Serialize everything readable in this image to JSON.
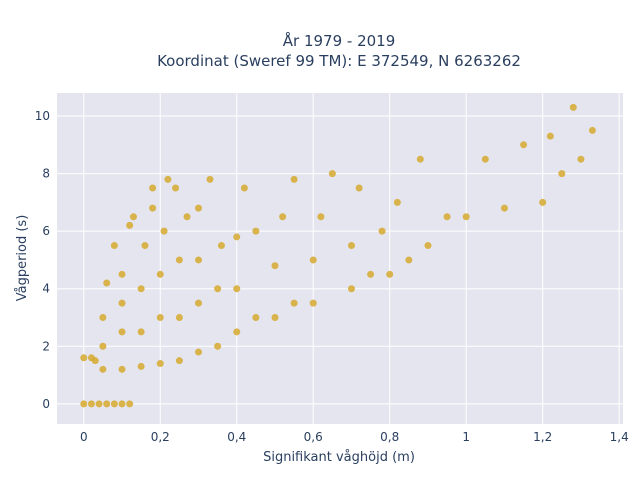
{
  "chart_data": {
    "type": "scatter",
    "title_line1": "År 1979 - 2019",
    "title_line2": "Koordinat (Sweref 99 TM): E 372549, N 6263262",
    "xlabel": "Signifikant våghöjd (m)",
    "ylabel": "Vågperiod (s)",
    "xlim": [
      -0.07,
      1.41
    ],
    "ylim": [
      -0.7,
      10.8
    ],
    "x_ticks": [
      0,
      0.2,
      0.4,
      0.6,
      0.8,
      1,
      1.2,
      1.4
    ],
    "x_tick_labels": [
      "0",
      "0,2",
      "0,4",
      "0,6",
      "0,8",
      "1",
      "1,2",
      "1,4"
    ],
    "y_ticks": [
      0,
      2,
      4,
      6,
      8,
      10
    ],
    "y_tick_labels": [
      "0",
      "2",
      "4",
      "6",
      "8",
      "10"
    ],
    "grid": true,
    "marker_color": "#D4A520",
    "background_color": "#E5E5F0",
    "grid_color": "#FFFFFF",
    "series": [
      {
        "points": [
          [
            0.0,
            0
          ],
          [
            0.02,
            0
          ],
          [
            0.04,
            0
          ],
          [
            0.06,
            0
          ],
          [
            0.08,
            0
          ],
          [
            0.1,
            0
          ],
          [
            0.12,
            0
          ],
          [
            0.0,
            1.6
          ],
          [
            0.02,
            1.6
          ],
          [
            0.03,
            1.5
          ],
          [
            0.05,
            1.2
          ],
          [
            0.05,
            2.0
          ],
          [
            0.05,
            3.0
          ],
          [
            0.06,
            4.2
          ],
          [
            0.08,
            5.5
          ],
          [
            0.1,
            1.2
          ],
          [
            0.1,
            2.5
          ],
          [
            0.1,
            3.5
          ],
          [
            0.1,
            4.5
          ],
          [
            0.12,
            6.2
          ],
          [
            0.13,
            6.5
          ],
          [
            0.15,
            1.3
          ],
          [
            0.15,
            2.5
          ],
          [
            0.15,
            4.0
          ],
          [
            0.16,
            5.5
          ],
          [
            0.18,
            7.5
          ],
          [
            0.18,
            6.8
          ],
          [
            0.2,
            1.4
          ],
          [
            0.2,
            3.0
          ],
          [
            0.2,
            4.5
          ],
          [
            0.21,
            6.0
          ],
          [
            0.22,
            7.8
          ],
          [
            0.24,
            7.5
          ],
          [
            0.25,
            1.5
          ],
          [
            0.25,
            3.0
          ],
          [
            0.25,
            5.0
          ],
          [
            0.27,
            6.5
          ],
          [
            0.3,
            1.8
          ],
          [
            0.3,
            3.5
          ],
          [
            0.3,
            5.0
          ],
          [
            0.3,
            6.8
          ],
          [
            0.33,
            7.8
          ],
          [
            0.35,
            2.0
          ],
          [
            0.35,
            4.0
          ],
          [
            0.36,
            5.5
          ],
          [
            0.4,
            2.5
          ],
          [
            0.4,
            4.0
          ],
          [
            0.4,
            5.8
          ],
          [
            0.42,
            7.5
          ],
          [
            0.45,
            3.0
          ],
          [
            0.45,
            6.0
          ],
          [
            0.5,
            3.0
          ],
          [
            0.5,
            4.8
          ],
          [
            0.52,
            6.5
          ],
          [
            0.55,
            7.8
          ],
          [
            0.55,
            3.5
          ],
          [
            0.6,
            3.5
          ],
          [
            0.6,
            5.0
          ],
          [
            0.62,
            6.5
          ],
          [
            0.65,
            8.0
          ],
          [
            0.7,
            4.0
          ],
          [
            0.7,
            5.5
          ],
          [
            0.72,
            7.5
          ],
          [
            0.75,
            4.5
          ],
          [
            0.78,
            6.0
          ],
          [
            0.8,
            4.5
          ],
          [
            0.82,
            7.0
          ],
          [
            0.85,
            5.0
          ],
          [
            0.88,
            8.5
          ],
          [
            0.9,
            5.5
          ],
          [
            0.95,
            6.5
          ],
          [
            1.0,
            6.5
          ],
          [
            1.05,
            8.5
          ],
          [
            1.1,
            6.8
          ],
          [
            1.15,
            9.0
          ],
          [
            1.2,
            7.0
          ],
          [
            1.22,
            9.3
          ],
          [
            1.25,
            8.0
          ],
          [
            1.28,
            10.3
          ],
          [
            1.3,
            8.5
          ],
          [
            1.33,
            9.5
          ]
        ]
      }
    ]
  }
}
